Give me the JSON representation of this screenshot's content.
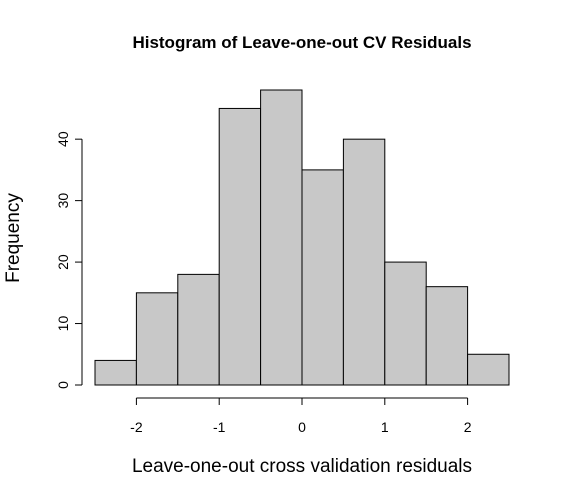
{
  "chart_data": {
    "type": "bar",
    "title": "Histogram of Leave-one-out CV Residuals",
    "xlabel": "Leave-one-out cross validation residuals",
    "ylabel": "Frequency",
    "bin_edges": [
      -2.5,
      -2.0,
      -1.5,
      -1.0,
      -0.5,
      0.0,
      0.5,
      1.0,
      1.5,
      2.0,
      2.5
    ],
    "values": [
      4,
      15,
      18,
      45,
      48,
      35,
      40,
      20,
      16,
      5
    ],
    "xlim": [
      -2.5,
      2.5
    ],
    "ylim": [
      0,
      48
    ],
    "xticks": [
      -2,
      -1,
      0,
      1,
      2
    ],
    "yticks": [
      0,
      10,
      20,
      30,
      40
    ],
    "grid": false,
    "colors": {
      "bar_fill": "#c8c8c8",
      "bar_stroke": "#000000"
    }
  }
}
